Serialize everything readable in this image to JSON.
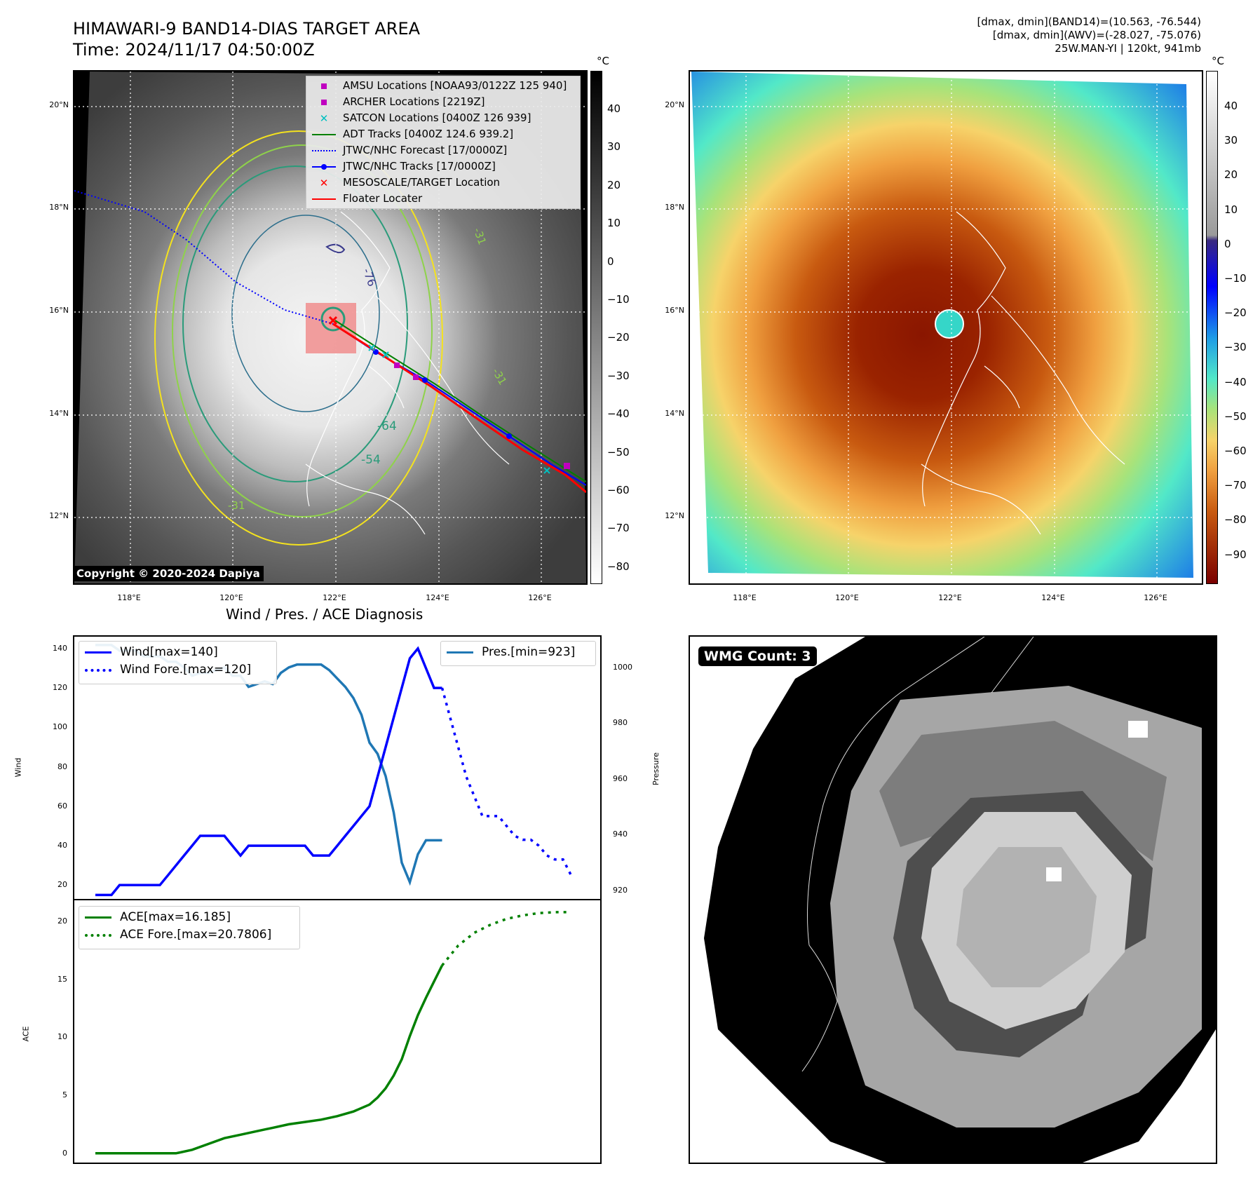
{
  "header": {
    "title_line1": "HIMAWARI-9 BAND14-DIAS TARGET AREA",
    "title_line2": "Time: 2024/11/17 04:50:00Z",
    "right_line1": "[dmax, dmin](BAND14)=(10.563, -76.544)",
    "right_line2": "[dmax, dmin](AWV)=(-28.027, -75.076)",
    "right_line3": "25W.MAN-YI | 120kt, 941mb"
  },
  "maps": {
    "lat_labels": [
      "20°N",
      "18°N",
      "16°N",
      "14°N",
      "12°N"
    ],
    "lon_labels": [
      "118°E",
      "120°E",
      "122°E",
      "124°E",
      "126°E"
    ],
    "contour_labels": [
      "-76",
      "-64",
      "-54",
      "-31",
      "-31",
      "-31"
    ],
    "copyright": "Copyright © 2020-2024 Dapiya",
    "colors": {
      "awv_eye": "#35d6c8",
      "awv_cold": "#6b0000",
      "awv_warm": "#1e7fe6"
    }
  },
  "cbar_left": {
    "unit": "°C",
    "ticks": [
      "40",
      "30",
      "20",
      "10",
      "0",
      "−10",
      "−20",
      "−30",
      "−40",
      "−50",
      "−60",
      "−70",
      "−80"
    ]
  },
  "cbar_right": {
    "unit": "°C",
    "ticks": [
      "40",
      "30",
      "20",
      "10",
      "0",
      "−10",
      "−20",
      "−30",
      "−40",
      "−50",
      "−60",
      "−70",
      "−80",
      "−90"
    ]
  },
  "legend": [
    {
      "label": "AMSU Locations [NOAA93/0122Z 125 940]",
      "symbol": "square",
      "color": "#c000c0"
    },
    {
      "label": "ARCHER Locations [2219Z]",
      "symbol": "square",
      "color": "#c000c0"
    },
    {
      "label": "SATCON Locations [0400Z 126 939]",
      "symbol": "x",
      "color": "#00c0c0"
    },
    {
      "label": "ADT Tracks [0400Z 124.6 939.2]",
      "symbol": "line",
      "color": "#008000"
    },
    {
      "label": "JTWC/NHC Forecast [17/0000Z]",
      "symbol": "dotted",
      "color": "#0000ff"
    },
    {
      "label": "JTWC/NHC Tracks [17/0000Z]",
      "symbol": "dotline",
      "color": "#0000ff"
    },
    {
      "label": "MESOSCALE/TARGET Location",
      "symbol": "x",
      "color": "#ff0000"
    },
    {
      "label": "Floater Locater",
      "symbol": "line",
      "color": "#ff0000"
    }
  ],
  "wmg": {
    "label": "WMG Count: 3"
  },
  "chart_data": [
    {
      "type": "line",
      "title": "Wind / Pres. / ACE Diagnosis",
      "ylabel": "Wind",
      "y2label": "Pressure",
      "ylim": [
        13,
        146
      ],
      "y2lim": [
        917,
        1011
      ],
      "yticks": [
        20,
        40,
        60,
        80,
        100,
        120,
        140
      ],
      "y2ticks": [
        920,
        940,
        960,
        980,
        1000
      ],
      "series": [
        {
          "name": "Wind[max=140]",
          "axis": "left",
          "color": "#0000ff",
          "style": "solid",
          "x": [
            0,
            1,
            2,
            3,
            4,
            5,
            6,
            7,
            8,
            9,
            10,
            11,
            12,
            13,
            14,
            15,
            16,
            17,
            18,
            19,
            20,
            21,
            22,
            23,
            24,
            25,
            26,
            27,
            28,
            29,
            30,
            31,
            32,
            33,
            34,
            35,
            36,
            37,
            38,
            39,
            40,
            41,
            42,
            43
          ],
          "values": [
            15,
            15,
            15,
            20,
            20,
            20,
            20,
            20,
            20,
            25,
            30,
            35,
            40,
            45,
            45,
            45,
            45,
            40,
            35,
            40,
            40,
            40,
            40,
            40,
            40,
            40,
            40,
            35,
            35,
            35,
            40,
            45,
            50,
            55,
            60,
            75,
            90,
            105,
            120,
            135,
            140,
            130,
            120,
            120
          ]
        },
        {
          "name": "Wind Fore.[max=120]",
          "axis": "left",
          "color": "#0000ff",
          "style": "dotted",
          "x": [
            43,
            44,
            45,
            46,
            47,
            48,
            49,
            50,
            51,
            52,
            53,
            54,
            55,
            56,
            57,
            58,
            59
          ],
          "values": [
            120,
            105,
            90,
            75,
            65,
            55,
            55,
            55,
            50,
            45,
            43,
            43,
            40,
            35,
            33,
            33,
            25
          ]
        },
        {
          "name": "Pres.[min=923]",
          "axis": "right",
          "color": "#1f77b4",
          "style": "solid",
          "x": [
            0,
            1,
            2,
            3,
            4,
            5,
            6,
            7,
            8,
            9,
            10,
            11,
            12,
            13,
            14,
            15,
            16,
            17,
            18,
            19,
            20,
            21,
            22,
            23,
            24,
            25,
            26,
            27,
            28,
            29,
            30,
            31,
            32,
            33,
            34,
            35,
            36,
            37,
            38,
            39,
            40,
            41,
            42,
            43
          ],
          "values": [
            1008,
            1008,
            1008,
            1006,
            1006,
            1006,
            1004,
            1004,
            1004,
            1002,
            1002,
            1000,
            997,
            998,
            998,
            999,
            1000,
            997,
            997,
            993,
            994,
            995,
            994,
            998,
            1000,
            1001,
            1001,
            1001,
            1001,
            999,
            996,
            993,
            989,
            983,
            973,
            969,
            961,
            948,
            930,
            923,
            933,
            938,
            938,
            938
          ]
        }
      ]
    },
    {
      "type": "line",
      "ylabel": "ACE",
      "ylim": [
        -0.8,
        21.8
      ],
      "yticks": [
        0,
        5,
        10,
        15,
        20
      ],
      "series": [
        {
          "name": "ACE[max=16.185]",
          "color": "#008000",
          "style": "solid",
          "x": [
            0,
            2,
            4,
            6,
            8,
            10,
            12,
            14,
            16,
            18,
            20,
            22,
            24,
            26,
            28,
            30,
            32,
            34,
            35,
            36,
            37,
            38,
            39,
            40,
            41,
            42,
            43
          ],
          "values": [
            0,
            0,
            0,
            0,
            0,
            0,
            0.3,
            0.8,
            1.3,
            1.6,
            1.9,
            2.2,
            2.5,
            2.7,
            2.9,
            3.2,
            3.6,
            4.2,
            4.8,
            5.6,
            6.7,
            8.1,
            10.1,
            11.9,
            13.4,
            14.8,
            16.185
          ]
        },
        {
          "name": "ACE Fore.[max=20.7806]",
          "color": "#008000",
          "style": "dotted",
          "x": [
            43,
            45,
            47,
            49,
            51,
            53,
            55,
            57,
            59
          ],
          "values": [
            16.185,
            17.9,
            19.0,
            19.7,
            20.2,
            20.5,
            20.7,
            20.78,
            20.78
          ]
        }
      ]
    }
  ]
}
